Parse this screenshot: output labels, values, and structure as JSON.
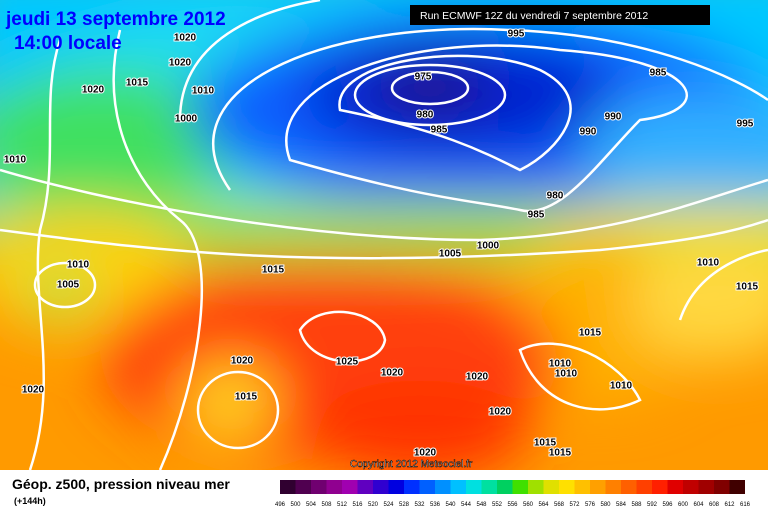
{
  "header": {
    "date": "jeudi 13 septembre 2012",
    "time": "14:00 locale",
    "run": "Run ECMWF 12Z du vendredi 7 septembre 2012"
  },
  "map": {
    "copyright": "Copyright 2012 Meteociel.fr",
    "isobar_labels": [
      1020,
      1020,
      1020,
      1015,
      1010,
      1000,
      1010,
      995,
      975,
      980,
      985,
      985,
      990,
      990,
      995,
      980,
      985,
      1000,
      1005,
      1015,
      1010,
      1005,
      1025,
      1020,
      1020,
      1020,
      1020,
      1015,
      1020,
      1020,
      1015,
      1015,
      1015,
      1010,
      1010,
      1010,
      1010,
      1015
    ]
  },
  "footer": {
    "title": "Géop. z500, pression niveau mer",
    "lead": "(+144h)",
    "scale": [
      496,
      500,
      504,
      508,
      512,
      516,
      520,
      524,
      528,
      532,
      536,
      540,
      544,
      548,
      552,
      556,
      560,
      564,
      568,
      572,
      576,
      580,
      584,
      588,
      592,
      596,
      600,
      604,
      608,
      612,
      616
    ]
  }
}
